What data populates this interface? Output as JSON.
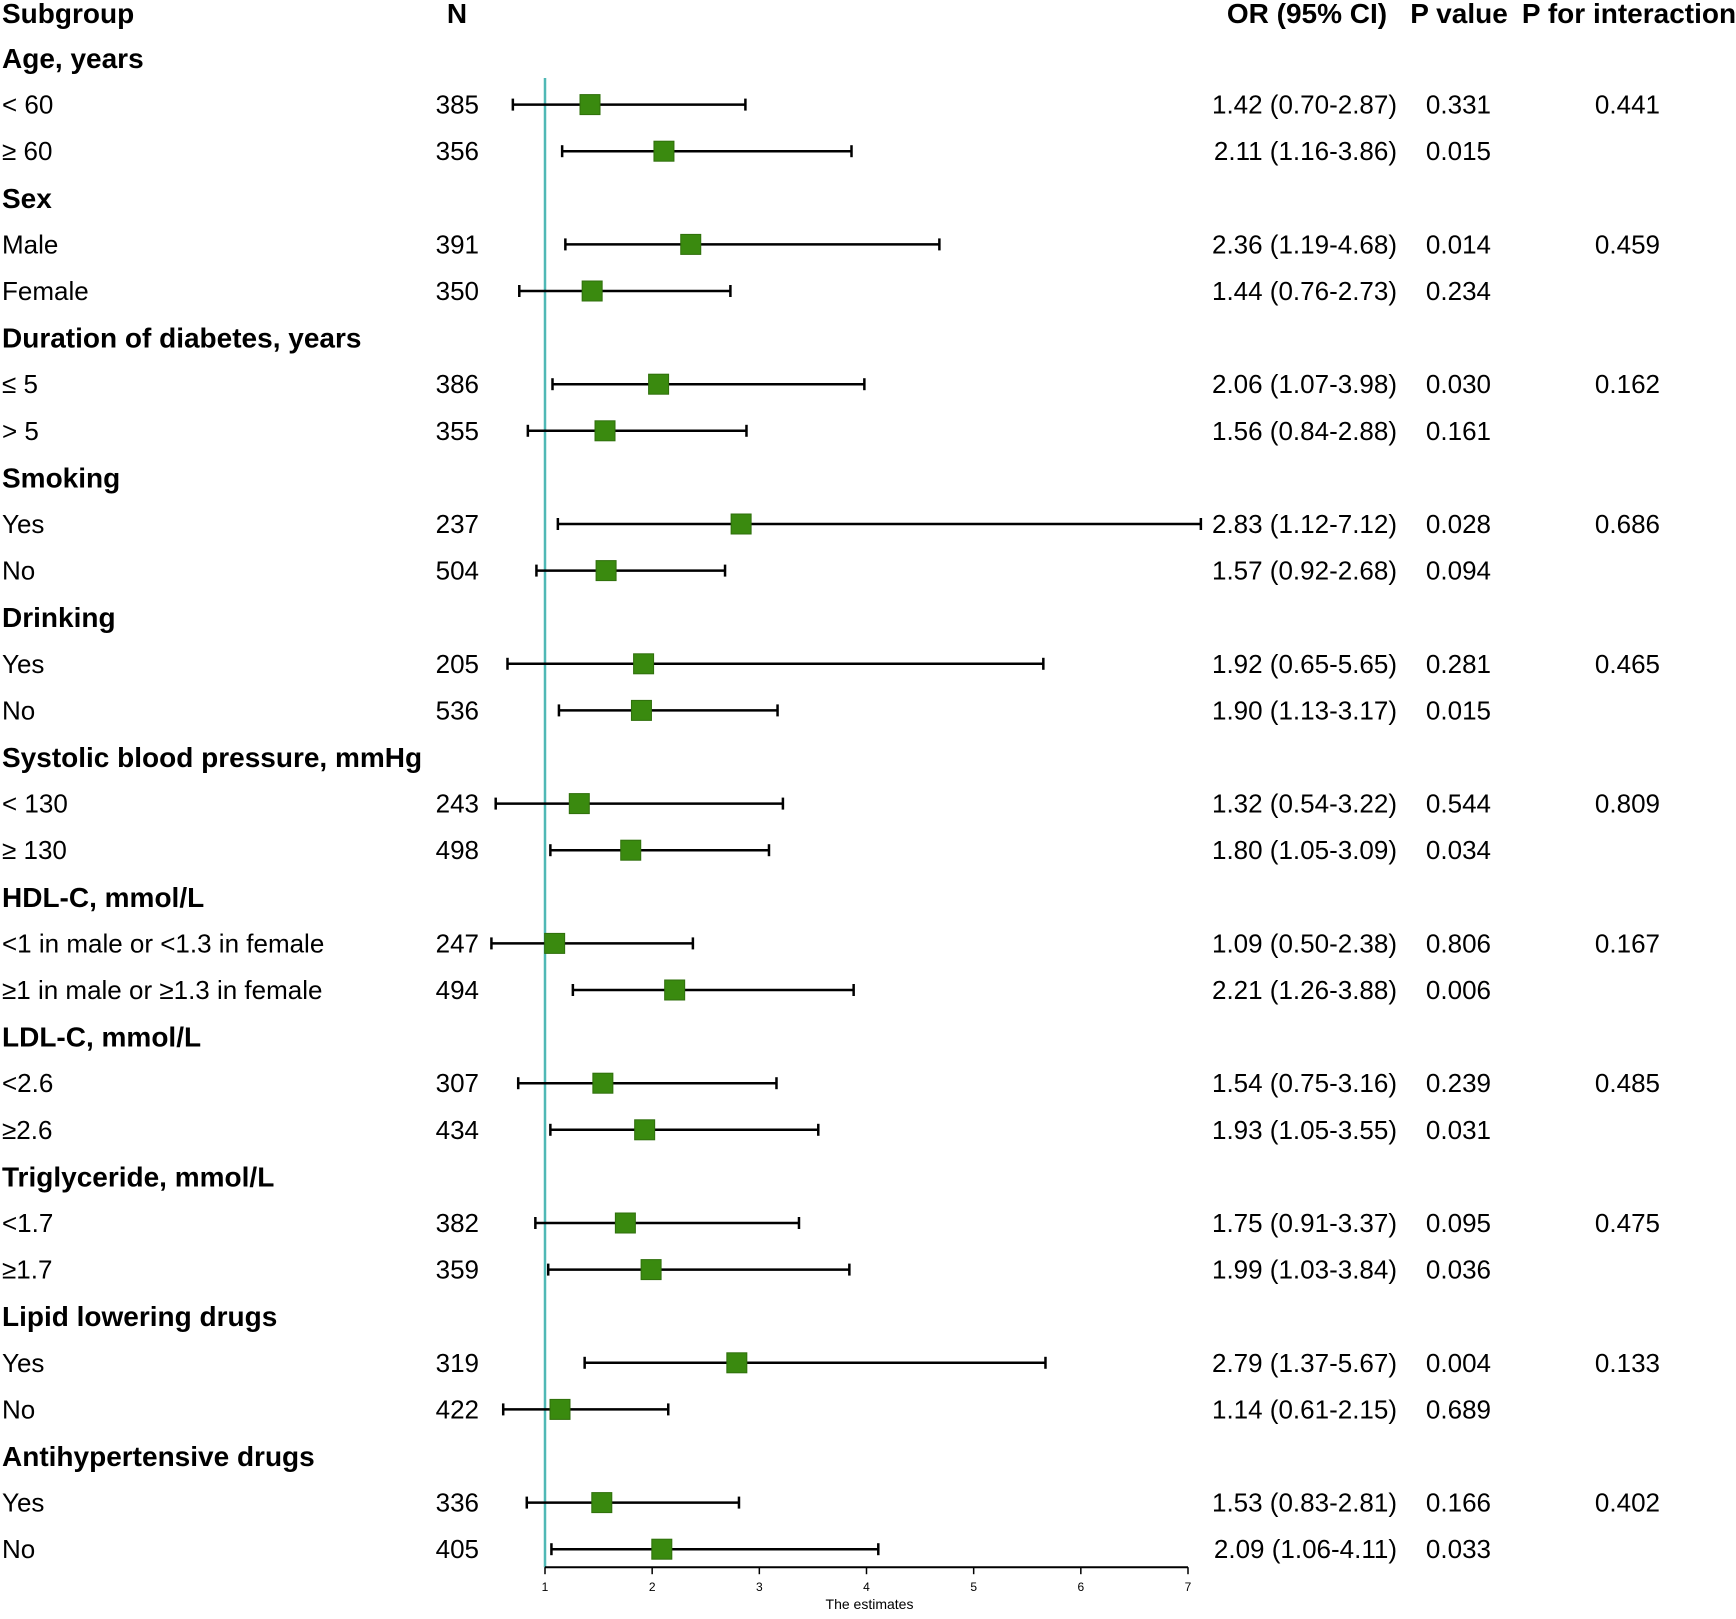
{
  "columns": {
    "subgroup": "Subgroup",
    "n": "N",
    "or_ci": "OR (95% CI)",
    "p_value": "P value",
    "p_interaction": "P for interaction"
  },
  "chart_data": {
    "type": "forest",
    "xlabel": "The estimates",
    "xlim": [
      1,
      7
    ],
    "xticks": [
      1,
      2,
      3,
      4,
      5,
      6,
      7
    ],
    "reference_line": 1,
    "colors": {
      "marker": "#3a8a0f",
      "marker_border": "#2f6f0b",
      "reference_line": "#4fb8b5",
      "whisker": "#000000"
    },
    "groups": [
      {
        "name": "Age, years",
        "p_interaction": "0.441",
        "rows": [
          {
            "label": "< 60",
            "n": "385",
            "or": 1.42,
            "lo": 0.7,
            "hi": 2.87,
            "or_ci": "1.42 (0.70-2.87)",
            "p": "0.331"
          },
          {
            "label": "≥ 60",
            "n": "356",
            "or": 2.11,
            "lo": 1.16,
            "hi": 3.86,
            "or_ci": "2.11 (1.16-3.86)",
            "p": "0.015"
          }
        ]
      },
      {
        "name": "Sex",
        "p_interaction": "0.459",
        "rows": [
          {
            "label": "Male",
            "n": "391",
            "or": 2.36,
            "lo": 1.19,
            "hi": 4.68,
            "or_ci": "2.36 (1.19-4.68)",
            "p": "0.014"
          },
          {
            "label": "Female",
            "n": "350",
            "or": 1.44,
            "lo": 0.76,
            "hi": 2.73,
            "or_ci": "1.44 (0.76-2.73)",
            "p": "0.234"
          }
        ]
      },
      {
        "name": "Duration of diabetes, years",
        "p_interaction": "0.162",
        "rows": [
          {
            "label": "≤ 5",
            "n": "386",
            "or": 2.06,
            "lo": 1.07,
            "hi": 3.98,
            "or_ci": "2.06 (1.07-3.98)",
            "p": "0.030"
          },
          {
            "label": "> 5",
            "n": "355",
            "or": 1.56,
            "lo": 0.84,
            "hi": 2.88,
            "or_ci": "1.56 (0.84-2.88)",
            "p": "0.161"
          }
        ]
      },
      {
        "name": "Smoking",
        "p_interaction": "0.686",
        "rows": [
          {
            "label": "Yes",
            "n": "237",
            "or": 2.83,
            "lo": 1.12,
            "hi": 7.12,
            "or_ci": "2.83 (1.12-7.12)",
            "p": "0.028"
          },
          {
            "label": "No",
            "n": "504",
            "or": 1.57,
            "lo": 0.92,
            "hi": 2.68,
            "or_ci": "1.57 (0.92-2.68)",
            "p": "0.094"
          }
        ]
      },
      {
        "name": "Drinking",
        "p_interaction": "0.465",
        "rows": [
          {
            "label": "Yes",
            "n": "205",
            "or": 1.92,
            "lo": 0.65,
            "hi": 5.65,
            "or_ci": "1.92 (0.65-5.65)",
            "p": "0.281"
          },
          {
            "label": "No",
            "n": "536",
            "or": 1.9,
            "lo": 1.13,
            "hi": 3.17,
            "or_ci": "1.90 (1.13-3.17)",
            "p": "0.015"
          }
        ]
      },
      {
        "name": "Systolic blood pressure, mmHg",
        "p_interaction": "0.809",
        "rows": [
          {
            "label": "< 130",
            "n": "243",
            "or": 1.32,
            "lo": 0.54,
            "hi": 3.22,
            "or_ci": "1.32 (0.54-3.22)",
            "p": "0.544"
          },
          {
            "label": "≥ 130",
            "n": "498",
            "or": 1.8,
            "lo": 1.05,
            "hi": 3.09,
            "or_ci": "1.80 (1.05-3.09)",
            "p": "0.034"
          }
        ]
      },
      {
        "name": "HDL-C, mmol/L",
        "p_interaction": "0.167",
        "rows": [
          {
            "label": "<1 in male or <1.3 in female",
            "n": "247",
            "or": 1.09,
            "lo": 0.5,
            "hi": 2.38,
            "or_ci": "1.09 (0.50-2.38)",
            "p": "0.806"
          },
          {
            "label": "≥1 in male or ≥1.3 in female",
            "n": "494",
            "or": 2.21,
            "lo": 1.26,
            "hi": 3.88,
            "or_ci": "2.21 (1.26-3.88)",
            "p": "0.006"
          }
        ]
      },
      {
        "name": "LDL-C, mmol/L",
        "p_interaction": "0.485",
        "rows": [
          {
            "label": "<2.6",
            "n": "307",
            "or": 1.54,
            "lo": 0.75,
            "hi": 3.16,
            "or_ci": "1.54 (0.75-3.16)",
            "p": "0.239"
          },
          {
            "label": "≥2.6",
            "n": "434",
            "or": 1.93,
            "lo": 1.05,
            "hi": 3.55,
            "or_ci": "1.93 (1.05-3.55)",
            "p": "0.031"
          }
        ]
      },
      {
        "name": "Triglyceride, mmol/L",
        "p_interaction": "0.475",
        "rows": [
          {
            "label": "<1.7",
            "n": "382",
            "or": 1.75,
            "lo": 0.91,
            "hi": 3.37,
            "or_ci": "1.75 (0.91-3.37)",
            "p": "0.095"
          },
          {
            "label": "≥1.7",
            "n": "359",
            "or": 1.99,
            "lo": 1.03,
            "hi": 3.84,
            "or_ci": "1.99 (1.03-3.84)",
            "p": "0.036"
          }
        ]
      },
      {
        "name": "Lipid lowering drugs",
        "p_interaction": "0.133",
        "rows": [
          {
            "label": "Yes",
            "n": "319",
            "or": 2.79,
            "lo": 1.37,
            "hi": 5.67,
            "or_ci": "2.79 (1.37-5.67)",
            "p": "0.004"
          },
          {
            "label": "No",
            "n": "422",
            "or": 1.14,
            "lo": 0.61,
            "hi": 2.15,
            "or_ci": "1.14 (0.61-2.15)",
            "p": "0.689"
          }
        ]
      },
      {
        "name": "Antihypertensive drugs",
        "p_interaction": "0.402",
        "rows": [
          {
            "label": "Yes",
            "n": "336",
            "or": 1.53,
            "lo": 0.83,
            "hi": 2.81,
            "or_ci": "1.53 (0.83-2.81)",
            "p": "0.166"
          },
          {
            "label": "No",
            "n": "405",
            "or": 2.09,
            "lo": 1.06,
            "hi": 4.11,
            "or_ci": "2.09 (1.06-4.11)",
            "p": "0.033"
          }
        ]
      }
    ]
  }
}
